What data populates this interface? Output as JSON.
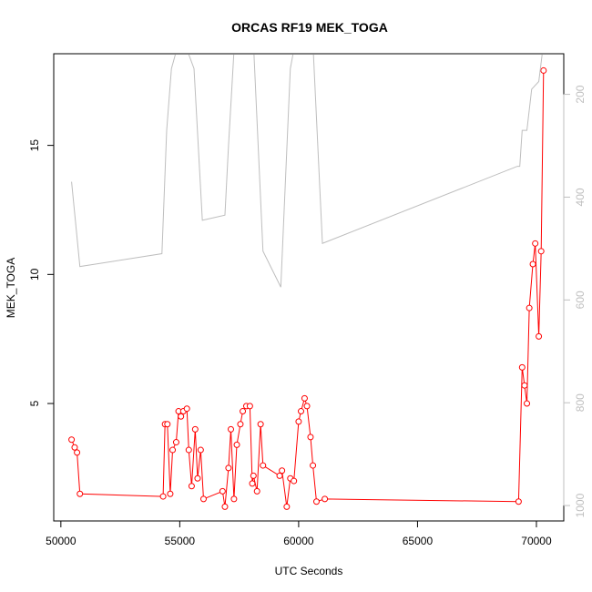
{
  "chart_data": {
    "type": "line",
    "title": "ORCAS RF19 MEK_TOGA",
    "xlabel": "UTC Seconds",
    "ylabel": "MEK_TOGA",
    "xlim": [
      49700,
      71150
    ],
    "ylim": [
      0.45,
      18.55
    ],
    "x_ticks": [
      50000,
      55000,
      60000,
      65000,
      70000
    ],
    "y_ticks": [
      5,
      10,
      15
    ],
    "y2_ticks": [
      200,
      400,
      600,
      800,
      1000
    ],
    "y2lim": [
      1030,
      121
    ],
    "series": [
      {
        "color": "#ff0000",
        "markers": "open-circle",
        "points": [
          [
            50450,
            3.6
          ],
          [
            50580,
            3.3
          ],
          [
            50680,
            3.1
          ],
          [
            50800,
            1.5
          ],
          [
            54300,
            1.4
          ],
          [
            54380,
            4.2
          ],
          [
            54480,
            4.2
          ],
          [
            54600,
            1.5
          ],
          [
            54700,
            3.2
          ],
          [
            54850,
            3.5
          ],
          [
            54950,
            4.7
          ],
          [
            55050,
            4.5
          ],
          [
            55150,
            4.7
          ],
          [
            55300,
            4.8
          ],
          [
            55380,
            3.2
          ],
          [
            55500,
            1.8
          ],
          [
            55650,
            4.0
          ],
          [
            55750,
            2.1
          ],
          [
            55880,
            3.2
          ],
          [
            56000,
            1.3
          ],
          [
            56800,
            1.6
          ],
          [
            56900,
            1.0
          ],
          [
            57050,
            2.5
          ],
          [
            57150,
            4.0
          ],
          [
            57280,
            1.3
          ],
          [
            57400,
            3.4
          ],
          [
            57550,
            4.2
          ],
          [
            57650,
            4.7
          ],
          [
            57800,
            4.9
          ],
          [
            57950,
            4.9
          ],
          [
            58050,
            1.9
          ],
          [
            58100,
            2.2
          ],
          [
            58250,
            1.6
          ],
          [
            58400,
            4.2
          ],
          [
            58500,
            2.6
          ],
          [
            59200,
            2.2
          ],
          [
            59300,
            2.4
          ],
          [
            59500,
            1.0
          ],
          [
            59650,
            2.1
          ],
          [
            59800,
            2.0
          ],
          [
            60000,
            4.3
          ],
          [
            60100,
            4.7
          ],
          [
            60250,
            5.2
          ],
          [
            60350,
            4.9
          ],
          [
            60500,
            3.7
          ],
          [
            60600,
            2.6
          ],
          [
            60750,
            1.2
          ],
          [
            61100,
            1.3
          ],
          [
            69250,
            1.2
          ],
          [
            69400,
            6.4
          ],
          [
            69500,
            5.7
          ],
          [
            69600,
            5.0
          ],
          [
            69700,
            8.7
          ],
          [
            69850,
            10.4
          ],
          [
            69950,
            11.2
          ],
          [
            70100,
            7.6
          ],
          [
            70200,
            10.9
          ],
          [
            70300,
            17.9
          ]
        ]
      },
      {
        "color": "#bebebe",
        "markers": "none",
        "axis": "right",
        "points": [
          [
            50450,
            370
          ],
          [
            50800,
            535
          ],
          [
            54250,
            510
          ],
          [
            54450,
            270
          ],
          [
            54650,
            150
          ],
          [
            54950,
            100
          ],
          [
            55200,
            100
          ],
          [
            55600,
            150
          ],
          [
            55950,
            445
          ],
          [
            56900,
            435
          ],
          [
            57050,
            300
          ],
          [
            57300,
            100
          ],
          [
            57550,
            100
          ],
          [
            58100,
            100
          ],
          [
            58500,
            505
          ],
          [
            59250,
            575
          ],
          [
            59650,
            150
          ],
          [
            59850,
            100
          ],
          [
            60100,
            100
          ],
          [
            60600,
            100
          ],
          [
            61000,
            490
          ],
          [
            69200,
            340
          ],
          [
            69300,
            340
          ],
          [
            69400,
            270
          ],
          [
            69600,
            270
          ],
          [
            69800,
            190
          ],
          [
            70100,
            175
          ],
          [
            70300,
            100
          ],
          [
            70600,
            100
          ]
        ]
      }
    ]
  }
}
